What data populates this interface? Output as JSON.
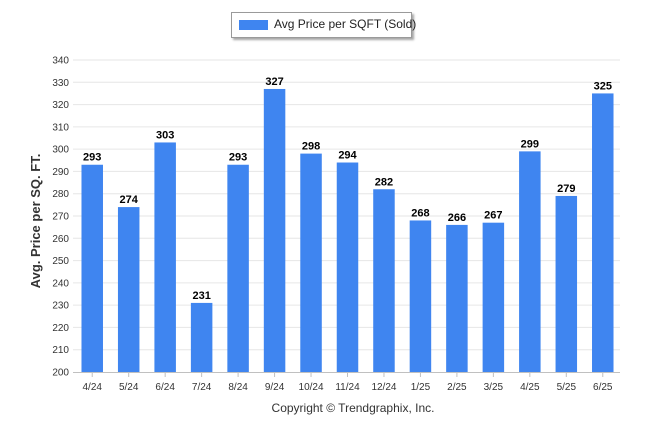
{
  "colors": {
    "bar": "#3f85f0",
    "grid": "#e6e6e6",
    "axis": "#c0c0c0",
    "text": "#333333"
  },
  "legend": {
    "label": "Avg Price per SQFT (Sold)"
  },
  "footer": {
    "copyright": "Copyright © Trendgraphix, Inc."
  },
  "chart_data": {
    "type": "bar",
    "title": "",
    "xlabel": "",
    "ylabel": "Avg. Price per SQ. FT.",
    "ylim": [
      200,
      340
    ],
    "yticks": [
      200,
      210,
      220,
      230,
      240,
      250,
      260,
      270,
      280,
      290,
      300,
      310,
      320,
      330,
      340
    ],
    "grid": true,
    "legend_position": "top",
    "categories": [
      "4/24",
      "5/24",
      "6/24",
      "7/24",
      "8/24",
      "9/24",
      "10/24",
      "11/24",
      "12/24",
      "1/25",
      "2/25",
      "3/25",
      "4/25",
      "5/25",
      "6/25"
    ],
    "series": [
      {
        "name": "Avg Price per SQFT (Sold)",
        "values": [
          293,
          274,
          303,
          231,
          293,
          327,
          298,
          294,
          282,
          268,
          266,
          267,
          299,
          279,
          325
        ]
      }
    ]
  }
}
